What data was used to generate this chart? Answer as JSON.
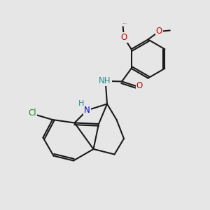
{
  "background_color": "#e6e6e6",
  "bond_color": "#1a1a1a",
  "bond_width": 1.5,
  "atom_colors": {
    "N": "#0000cc",
    "O": "#cc0000",
    "Cl": "#228B22",
    "C": "#1a1a1a",
    "H": "#2e8b8b"
  },
  "font_size_atom": 8.5,
  "font_size_small": 7.0
}
